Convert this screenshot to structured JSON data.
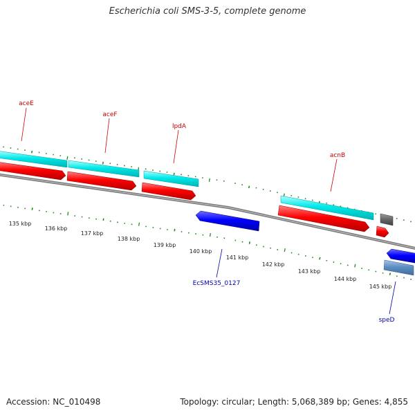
{
  "title": "Escherichia coli SMS-3-5, complete genome",
  "footer": {
    "accession": "Accession: NC_010498",
    "info": "Topology: circular; Length: 5,068,389 bp; Genes: 4,855"
  },
  "scale_labels": [
    "135 kbp",
    "136 kbp",
    "137 kbp",
    "138 kbp",
    "139 kbp",
    "140 kbp",
    "141 kbp",
    "142 kbp",
    "143 kbp",
    "144 kbp",
    "145 kbp"
  ],
  "gene_labels": {
    "top": [
      "aceE",
      "aceF",
      "lpdA",
      "acnB"
    ],
    "bottom": [
      "EcSMS35_0127",
      "speD"
    ]
  },
  "colors": {
    "forward_cds": "#ff0000",
    "forward_gene": "#00e5e5",
    "reverse_cds": "#0000ff",
    "reverse_gene": "#4f7fb3",
    "other_feature": "#666666",
    "backbone": "#808080",
    "ticks": "#228b22",
    "top_label": "#cc0000",
    "bottom_label": "#0000aa"
  }
}
